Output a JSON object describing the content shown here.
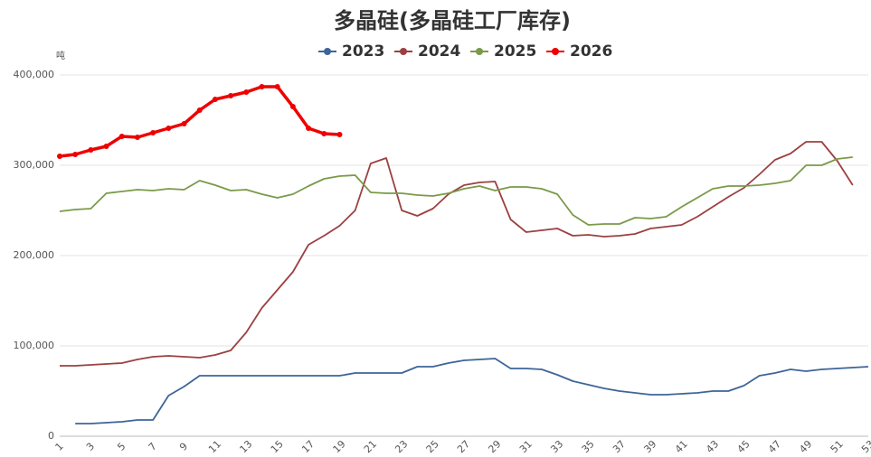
{
  "chart_data": {
    "type": "line",
    "title": "多晶硅(多晶硅工厂库存)",
    "y_unit": "吨",
    "categories": [
      "1",
      null,
      "3",
      null,
      "5",
      null,
      "7",
      null,
      "9",
      null,
      "11",
      null,
      "13",
      null,
      "15",
      null,
      "17",
      null,
      "19",
      null,
      "21",
      null,
      "23",
      null,
      "25",
      null,
      "27",
      null,
      "29",
      null,
      "31",
      null,
      "33",
      null,
      "35",
      null,
      "37",
      null,
      "39",
      null,
      "41",
      null,
      "43",
      null,
      "45",
      null,
      "47",
      null,
      "49",
      null,
      "51",
      null,
      "53"
    ],
    "ylim": [
      0,
      400000
    ],
    "yticks": [
      0,
      {
        "value": 100000,
        "label": "100,000"
      },
      {
        "value": 200000,
        "label": "200,000"
      },
      {
        "value": 300000,
        "label": "300,000"
      },
      {
        "value": 400000,
        "label": "400,000"
      }
    ],
    "grid": true,
    "series": [
      {
        "name": "2023",
        "color": "#3e6499",
        "markers": false,
        "values": [
          null,
          14000,
          14000,
          15000,
          16000,
          18000,
          18000,
          45000,
          55000,
          67000,
          67000,
          67000,
          67000,
          67000,
          67000,
          67000,
          67000,
          67000,
          67000,
          70000,
          70000,
          70000,
          70000,
          77000,
          77000,
          81000,
          84000,
          85000,
          86000,
          75000,
          75000,
          74000,
          68000,
          61000,
          57000,
          53000,
          50000,
          48000,
          46000,
          46000,
          47000,
          48000,
          50000,
          50000,
          56000,
          67000,
          70000,
          74000,
          72000,
          74000,
          75000,
          76000,
          77000
        ]
      },
      {
        "name": "2024",
        "color": "#9c4040",
        "markers": false,
        "values": [
          78000,
          78000,
          79000,
          80000,
          81000,
          85000,
          88000,
          89000,
          88000,
          87000,
          90000,
          95000,
          115000,
          142000,
          162000,
          182000,
          212000,
          222000,
          233000,
          250000,
          302000,
          308000,
          250000,
          244000,
          252000,
          268000,
          278000,
          281000,
          282000,
          240000,
          226000,
          228000,
          230000,
          222000,
          223000,
          221000,
          222000,
          224000,
          230000,
          232000,
          234000,
          243000,
          254000,
          265000,
          275000,
          290000,
          306000,
          313000,
          326000,
          326000,
          305000,
          278000,
          null
        ]
      },
      {
        "name": "2025",
        "color": "#7a9a48",
        "markers": false,
        "values": [
          249000,
          251000,
          252000,
          269000,
          271000,
          273000,
          272000,
          274000,
          273000,
          283000,
          278000,
          272000,
          273000,
          268000,
          264000,
          268000,
          277000,
          285000,
          288000,
          289000,
          270000,
          269000,
          269000,
          267000,
          266000,
          269000,
          274000,
          277000,
          272000,
          276000,
          276000,
          274000,
          268000,
          245000,
          234000,
          235000,
          235000,
          242000,
          241000,
          243000,
          254000,
          264000,
          274000,
          277000,
          277000,
          278000,
          280000,
          283000,
          300000,
          300000,
          307000,
          309000,
          null
        ]
      },
      {
        "name": "2026",
        "color": "#ee0000",
        "markers": true,
        "values": [
          310000,
          312000,
          317000,
          321000,
          332000,
          331000,
          336000,
          341000,
          346000,
          361000,
          373000,
          377000,
          381000,
          387000,
          387000,
          365000,
          341000,
          335000,
          334000,
          null,
          null,
          null,
          null,
          null,
          null,
          null,
          null,
          null,
          null,
          null,
          null,
          null,
          null,
          null,
          null,
          null,
          null,
          null,
          null,
          null,
          null,
          null,
          null,
          null,
          null,
          null,
          null,
          null,
          null,
          null,
          null,
          null,
          null
        ]
      }
    ]
  }
}
